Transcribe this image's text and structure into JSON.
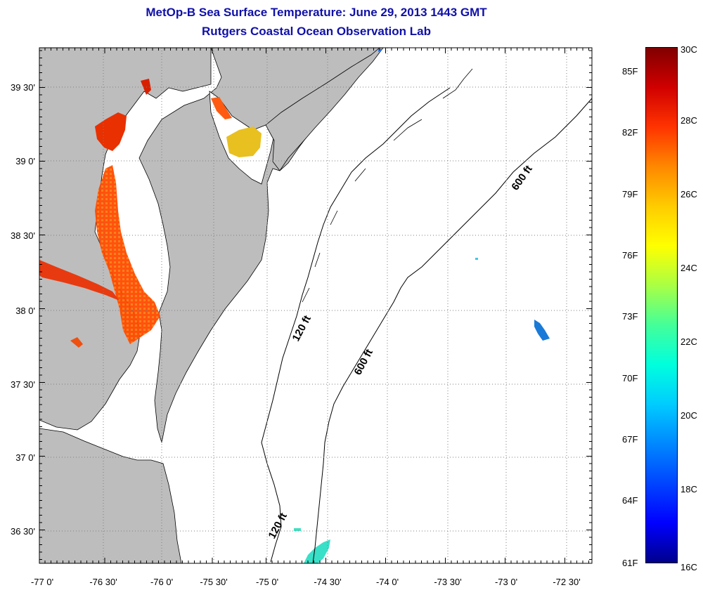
{
  "title": {
    "line1": "MetOp-B Sea Surface Temperature:  June 29, 2013 1443 GMT",
    "line2": "Rutgers Coastal Ocean Observation Lab"
  },
  "map": {
    "lon_labels": [
      "-77 0'",
      "-76 30'",
      "-76 0'",
      "-75 30'",
      "-75 0'",
      "-74 30'",
      "-74 0'",
      "-73 30'",
      "-73 0'",
      "-72 30'"
    ],
    "lat_labels": [
      "39 30'",
      "39 0'",
      "38 30'",
      "38 0'",
      "37 30'",
      "37 0'",
      "36 30'"
    ],
    "contour_labels": [
      "600 ft",
      "120 ft",
      "600 ft",
      "120 ft"
    ],
    "colors": {
      "land": "#bdbdbd",
      "water": "#ffffff",
      "grid": "#808080"
    }
  },
  "colorbar": {
    "celsius_labels": [
      "30C",
      "28C",
      "26C",
      "24C",
      "22C",
      "20C",
      "18C",
      "16C"
    ],
    "fahrenheit_labels": [
      "85F",
      "82F",
      "79F",
      "76F",
      "73F",
      "70F",
      "67F",
      "64F",
      "61F"
    ],
    "gradient_stops": [
      "#800000",
      "#d00000",
      "#ff3300",
      "#ff8800",
      "#ffcc00",
      "#ffff00",
      "#aaff44",
      "#44ff99",
      "#00ffdd",
      "#00ccff",
      "#0088ff",
      "#0044ff",
      "#0000ff",
      "#00008c"
    ]
  }
}
